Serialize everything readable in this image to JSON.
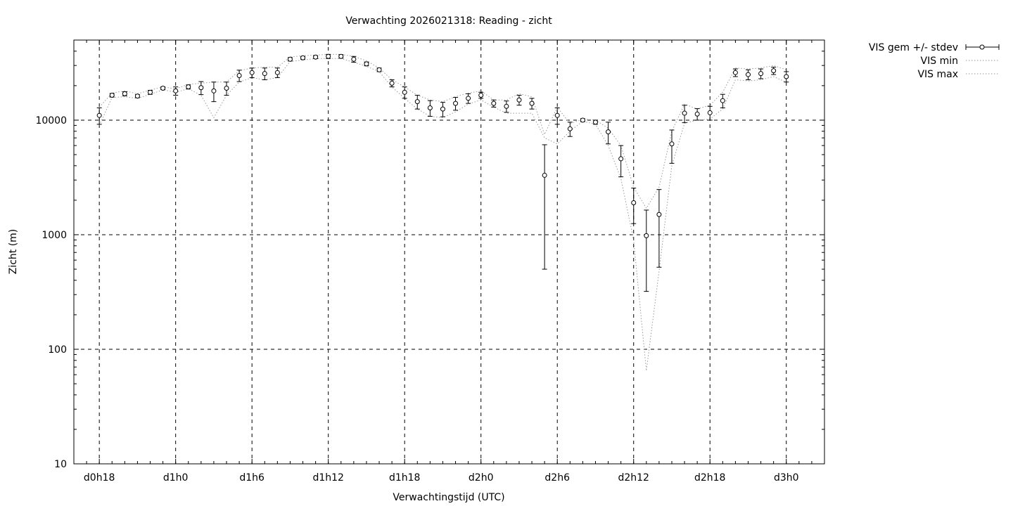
{
  "chart_data": {
    "type": "scatter",
    "title": "Verwachting 2026021318: Reading - zicht",
    "xlabel": "Verwachtingstijd (UTC)",
    "ylabel": "Zicht (m)",
    "y_scale": "log",
    "ylim": [
      10,
      50000
    ],
    "xlim": [
      -2,
      57
    ],
    "x_unit": "hours after 2026021318",
    "x_tick_values": [
      0,
      6,
      12,
      18,
      24,
      30,
      36,
      42,
      48,
      54
    ],
    "x_tick_labels": [
      "d0h18",
      "d1h0",
      "d1h6",
      "d1h12",
      "d1h18",
      "d2h0",
      "d2h6",
      "d2h12",
      "d2h18",
      "d3h0"
    ],
    "y_tick_values": [
      10,
      100,
      1000,
      10000
    ],
    "y_tick_labels": [
      "10",
      "100",
      "1000",
      "10000"
    ],
    "grid": true,
    "legend_position": "outside-top-right",
    "x": [
      0,
      1,
      2,
      3,
      4,
      5,
      6,
      7,
      8,
      9,
      10,
      11,
      12,
      13,
      14,
      15,
      16,
      17,
      18,
      19,
      20,
      21,
      22,
      23,
      24,
      25,
      26,
      27,
      28,
      29,
      30,
      31,
      32,
      33,
      34,
      35,
      36,
      37,
      38,
      39,
      40,
      41,
      42,
      43,
      44,
      45,
      46,
      47,
      48,
      49,
      50,
      51,
      52,
      53,
      54
    ],
    "series": [
      {
        "name": "VIS gem +/- stdev",
        "style": "points-errorbars",
        "values": [
          11000,
          16500,
          17000,
          16200,
          17500,
          19000,
          18000,
          19500,
          19200,
          18000,
          19000,
          24500,
          26000,
          25500,
          26000,
          34000,
          35000,
          35500,
          36000,
          36000,
          34000,
          31000,
          27500,
          21000,
          17500,
          14500,
          12800,
          12500,
          14000,
          15500,
          16500,
          14000,
          13200,
          15000,
          14000,
          3300,
          11000,
          8400,
          10000,
          9600,
          7900,
          4600,
          1900,
          980,
          1500,
          6200,
          11500,
          11300,
          11600,
          14800,
          26000,
          25000,
          25500,
          27000,
          24000
        ],
        "stdev": [
          1800,
          600,
          700,
          500,
          700,
          500,
          1500,
          800,
          2500,
          3500,
          2500,
          2800,
          2500,
          3000,
          2500,
          1200,
          1000,
          1000,
          1500,
          1300,
          2000,
          1200,
          1000,
          1500,
          2000,
          2000,
          2000,
          1800,
          1800,
          1500,
          1000,
          1000,
          1500,
          1500,
          1500,
          2800,
          1800,
          1200,
          300,
          400,
          1700,
          1400,
          650,
          660,
          980,
          2000,
          2000,
          1300,
          1600,
          2000,
          2000,
          2500,
          2500,
          2000,
          2500
        ]
      },
      {
        "name": "VIS min",
        "style": "dotted-line",
        "values": [
          9000,
          15800,
          16000,
          15500,
          16800,
          18400,
          17500,
          18800,
          16500,
          10500,
          16500,
          21500,
          23500,
          22500,
          23500,
          32500,
          33500,
          34500,
          34500,
          34500,
          32000,
          29500,
          26500,
          19500,
          15500,
          12500,
          10800,
          10500,
          11800,
          13800,
          15000,
          13000,
          11500,
          11500,
          11500,
          7000,
          6200,
          8000,
          9800,
          9200,
          6000,
          3100,
          900,
          65,
          480,
          4000,
          9400,
          10000,
          10200,
          12500,
          22500,
          22000,
          22500,
          24000,
          21500
        ]
      },
      {
        "name": "VIS max",
        "style": "dotted-line",
        "values": [
          13000,
          17200,
          18000,
          17000,
          18300,
          19500,
          18800,
          20500,
          21000,
          21500,
          21500,
          27000,
          28500,
          29000,
          29000,
          35500,
          36500,
          37000,
          37500,
          37500,
          36000,
          33000,
          28500,
          22500,
          19500,
          16500,
          15000,
          14500,
          16000,
          17200,
          18000,
          15000,
          15000,
          17000,
          16000,
          7500,
          13000,
          9300,
          10200,
          10000,
          8500,
          6000,
          2600,
          1700,
          2600,
          8000,
          13800,
          12500,
          13500,
          17500,
          28500,
          28000,
          28500,
          30000,
          27500
        ]
      }
    ]
  }
}
